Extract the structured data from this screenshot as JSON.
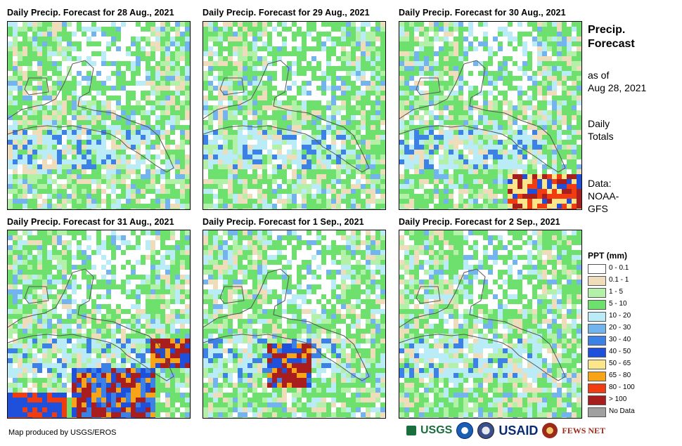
{
  "panels": [
    {
      "title": "Daily Precip. Forecast for 28 Aug., 2021",
      "heavy": []
    },
    {
      "title": "Daily Precip. Forecast for 29 Aug., 2021",
      "heavy": []
    },
    {
      "title": "Daily Precip. Forecast for 30 Aug., 2021",
      "heavy": [
        "south-east"
      ]
    },
    {
      "title": "Daily Precip. Forecast for 31 Aug., 2021",
      "heavy": [
        "pacific",
        "caribbean"
      ]
    },
    {
      "title": "Daily Precip. Forecast for 1 Sep., 2021",
      "heavy": [
        "central"
      ]
    },
    {
      "title": "Daily Precip. Forecast for 2 Sep., 2021",
      "heavy": []
    }
  ],
  "side": {
    "title_line1": "Precip.",
    "title_line2": "Forecast",
    "asof_line1": "as of",
    "asof_line2": "Aug 28, 2021",
    "totals_line1": "Daily",
    "totals_line2": "Totals",
    "data_line1": "Data:",
    "data_line2": "NOAA-",
    "data_line3": "GFS"
  },
  "legend": {
    "title": "PPT (mm)",
    "items": [
      {
        "label": "0 - 0.1",
        "color": "#ffffff"
      },
      {
        "label": "0.1 - 1",
        "color": "#eedcbb"
      },
      {
        "label": "1 - 5",
        "color": "#b3f0a8"
      },
      {
        "label": "5 - 10",
        "color": "#6ee06e"
      },
      {
        "label": "10 - 20",
        "color": "#b9ecf7"
      },
      {
        "label": "20 - 30",
        "color": "#74b4ee"
      },
      {
        "label": "30 - 40",
        "color": "#3c82e6"
      },
      {
        "label": "40 - 50",
        "color": "#1e50dc"
      },
      {
        "label": "50 - 65",
        "color": "#fce68a"
      },
      {
        "label": "65 - 80",
        "color": "#f7a418"
      },
      {
        "label": "80 - 100",
        "color": "#f03c10"
      },
      {
        "label": "> 100",
        "color": "#a81e1e"
      },
      {
        "label": "No Data",
        "color": "#a0a0a0"
      }
    ]
  },
  "credit": "Map produced by USGS/EROS",
  "logos": {
    "usgs": "USGS",
    "usaid": "USAID",
    "fews": "FEWS NET",
    "usgs_icon": "usgs-logo",
    "noaa_icon": "noaa-logo",
    "dept_icon": "agency-seal",
    "usaid_icon": "usaid-logo",
    "fews_icon": "fews-net-logo"
  }
}
